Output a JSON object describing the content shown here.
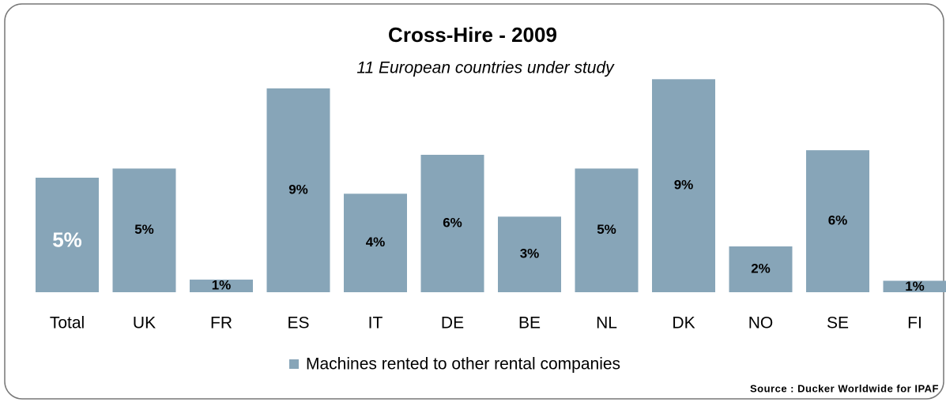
{
  "chart_data": {
    "type": "bar",
    "title": "Cross-Hire - 2009",
    "subtitle": "11 European countries under study",
    "categories": [
      "Total",
      "UK",
      "FR",
      "ES",
      "IT",
      "DE",
      "BE",
      "NL",
      "DK",
      "NO",
      "SE",
      "FI"
    ],
    "series": [
      {
        "name": "Machines rented to other rental companies",
        "color": "#87a5b8",
        "values": [
          5.0,
          5.4,
          0.55,
          8.9,
          4.3,
          6.0,
          3.3,
          5.4,
          9.3,
          2.0,
          6.2,
          0.5
        ],
        "value_labels": [
          "5%",
          "5%",
          "1%",
          "9%",
          "4%",
          "6%",
          "3%",
          "5%",
          "9%",
          "2%",
          "6%",
          "1%"
        ]
      }
    ],
    "ylim": [
      0,
      10
    ],
    "source": "Source : Ducker Worldwide for IPAF"
  }
}
